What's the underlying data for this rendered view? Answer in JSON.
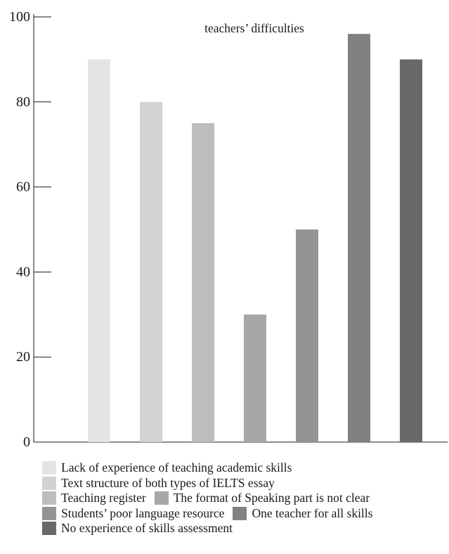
{
  "chart_data": {
    "type": "bar",
    "title": "teachers’ difficulties",
    "xlabel": "",
    "ylabel": "",
    "ylim": [
      0,
      100
    ],
    "yticks": [
      "0",
      "20",
      "40",
      "60",
      "80",
      "100"
    ],
    "grid": false,
    "legend_position": "bottom",
    "series": [
      {
        "name": "Lack of experience of teaching academic skills",
        "value": 90,
        "color": "#e3e4e6"
      },
      {
        "name": "Text structure of both types of IELTS essay",
        "value": 80,
        "color": "#d1d2d4"
      },
      {
        "name": "Teaching register",
        "value": 75,
        "color": "#bcbdbf"
      },
      {
        "name": "The format of Speaking part is not clear",
        "value": 30,
        "color": "#a6a7a9"
      },
      {
        "name": "Students’ poor language resource",
        "value": 50,
        "color": "#939496"
      },
      {
        "name": "One teacher for all skills",
        "value": 96,
        "color": "#808183"
      },
      {
        "name": "No experience of skills assessment",
        "value": 90,
        "color": "#67686a"
      }
    ]
  }
}
